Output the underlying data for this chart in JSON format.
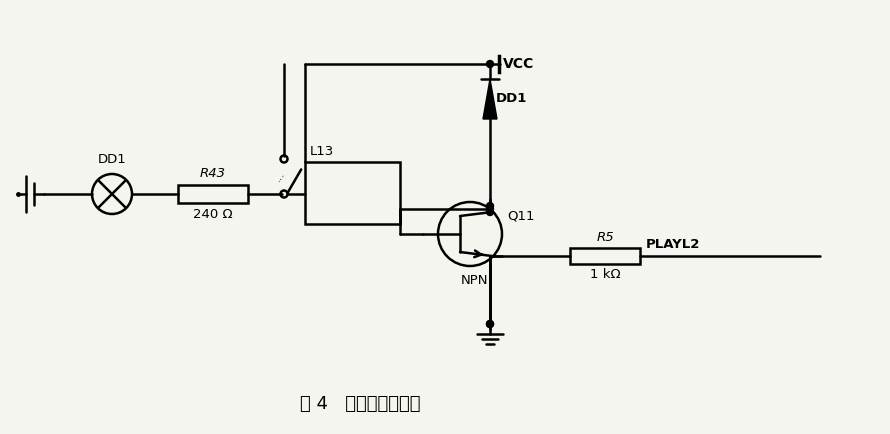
{
  "title": "图 4   继电器控制电路",
  "background_color": "#f5f5f0",
  "line_color": "#000000",
  "labels": {
    "DD1_bulb": "DD1",
    "R43": "R43",
    "R43_val": "240 Ω",
    "L13": "L13",
    "DD1_diode": "DD1",
    "Q11": "Q11",
    "NPN": "NPN",
    "R5": "R5",
    "R5_val": "1 kΩ",
    "PLAYL2": "PLAYL2",
    "VCC": "VCC"
  }
}
